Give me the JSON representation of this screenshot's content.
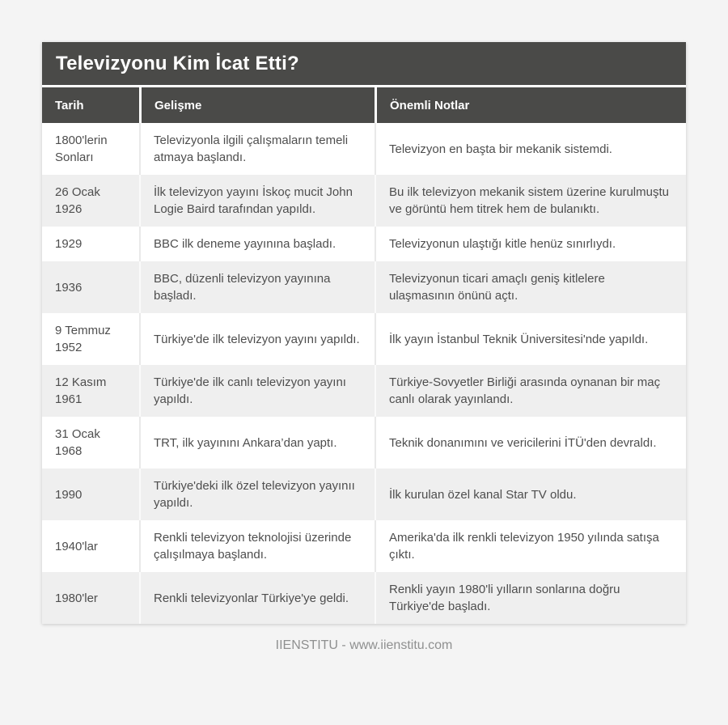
{
  "page": {
    "title": "Televizyonu Kim İcat Etti?",
    "footer": "IIENSTITU - www.iienstitu.com"
  },
  "table": {
    "columns": [
      "Tarih",
      "Gelişme",
      "Önemli Notlar"
    ],
    "rows": [
      {
        "tarih": "1800'lerin Sonları",
        "gelisme": "Televizyonla ilgili çalışmaların temeli atmaya başlandı.",
        "notlar": "Televizyon en başta bir mekanik sistemdi."
      },
      {
        "tarih": "26 Ocak 1926",
        "gelisme": "İlk televizyon yayını İskoç mucit John Logie Baird tarafından yapıldı.",
        "notlar": "Bu ilk televizyon mekanik sistem üzerine kurulmuştu ve görüntü hem titrek hem de bulanıktı."
      },
      {
        "tarih": "1929",
        "gelisme": "BBC ilk deneme yayınına başladı.",
        "notlar": "Televizyonun ulaştığı kitle henüz sınırlıydı."
      },
      {
        "tarih": "1936",
        "gelisme": "BBC, düzenli televizyon yayınına başladı.",
        "notlar": "Televizyonun ticari amaçlı geniş kitlelere ulaşmasının önünü açtı."
      },
      {
        "tarih": "9 Temmuz 1952",
        "gelisme": "Türkiye'de ilk televizyon yayını yapıldı.",
        "notlar": "İlk yayın İstanbul Teknik Üniversitesi'nde yapıldı."
      },
      {
        "tarih": "12 Kasım 1961",
        "gelisme": "Türkiye'de ilk canlı televizyon yayını yapıldı.",
        "notlar": "Türkiye-Sovyetler Birliği arasında oynanan bir maç canlı olarak yayınlandı."
      },
      {
        "tarih": "31 Ocak 1968",
        "gelisme": "TRT, ilk yayınını Ankara’dan yaptı.",
        "notlar": "Teknik donanımını ve vericilerini İTÜ'den devraldı."
      },
      {
        "tarih": "1990",
        "gelisme": "Türkiye'deki ilk özel televizyon yayınıı yapıldı.",
        "notlar": "İlk kurulan özel kanal Star TV oldu."
      },
      {
        "tarih": "1940'lar",
        "gelisme": "Renkli televizyon teknolojisi üzerinde çalışılmaya başlandı.",
        "notlar": "Amerika'da ilk renkli televizyon 1950 yılında satışa çıktı."
      },
      {
        "tarih": "1980'ler",
        "gelisme": "Renkli televizyonlar Türkiye'ye geldi.",
        "notlar": "Renkli yayın 1980'li yılların sonlarına doğru Türkiye'de başladı."
      }
    ]
  },
  "colors": {
    "header_bg": "#4a4a48",
    "header_text": "#ffffff",
    "page_bg": "#f4f4f4",
    "row_bg": "#ffffff",
    "row_alt_bg": "#efefef",
    "body_text": "#4e4e4e",
    "footer_text": "#8f9090"
  }
}
